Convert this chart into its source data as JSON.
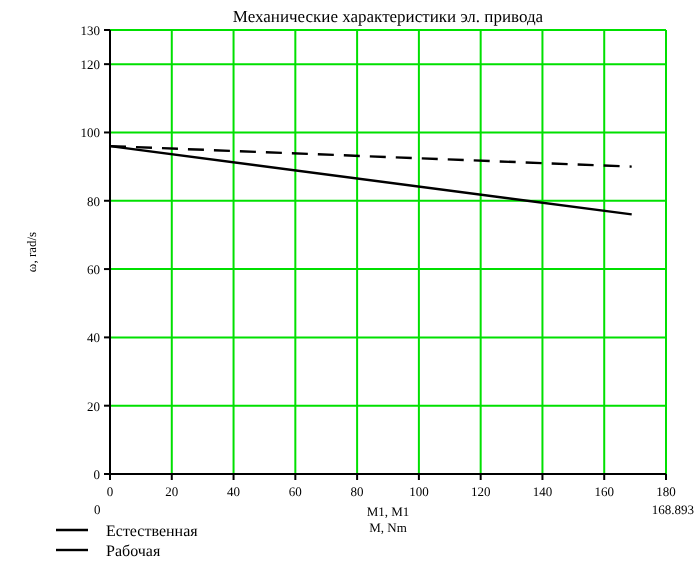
{
  "chart_data": {
    "type": "line",
    "title": "Механические характеристики эл. привода",
    "xlabel": "M1, M1\nM, Nm",
    "ylabel": "ω, rad/s",
    "x": [
      0,
      168.893
    ],
    "series": [
      {
        "name": "Естественная",
        "color": "#000000",
        "values": [
          96,
          90
        ],
        "line_style": "dashed"
      },
      {
        "name": "Рабочая",
        "color": "#000000",
        "values": [
          96,
          76
        ],
        "line_style": "solid"
      }
    ],
    "xlim": [
      0,
      180
    ],
    "xticks": [
      0,
      20,
      40,
      60,
      80,
      100,
      120,
      140,
      160,
      180
    ],
    "ylim": [
      0,
      130
    ],
    "yticks": [
      0,
      20,
      40,
      60,
      80,
      100,
      120,
      130
    ],
    "grid": true,
    "legend": "bottom left",
    "annotations": [
      "0",
      "168.893"
    ]
  }
}
